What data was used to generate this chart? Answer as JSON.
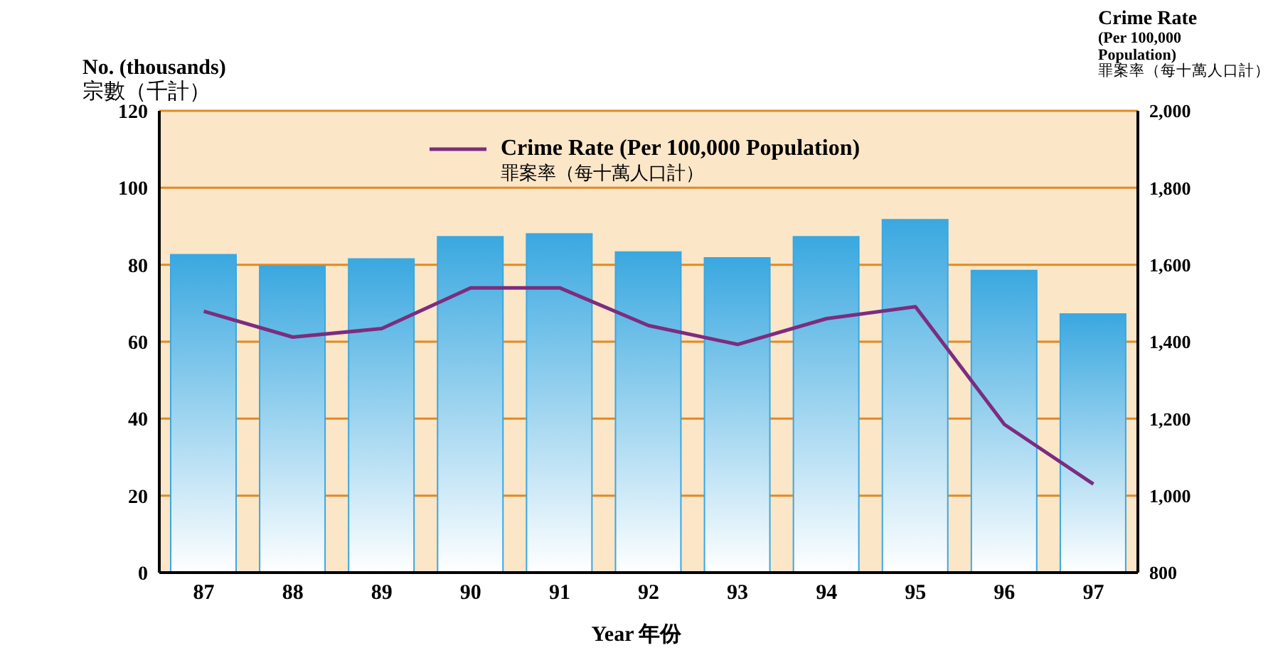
{
  "chart_data": {
    "type": "bar",
    "xlabel": "Year 年份",
    "ylabel": "No. (thousands)\n宗數（千計）",
    "y2label": "Crime Rate\n(Per 100,000\nPopulation)\n罪案率（每十萬人口計）",
    "categories": [
      "87",
      "88",
      "89",
      "90",
      "91",
      "92",
      "93",
      "94",
      "95",
      "96",
      "97"
    ],
    "series": [
      {
        "color": "#3aa8e0",
        "values": [
          82.6,
          79.6,
          81.5,
          87.3,
          88,
          83.3,
          81.8,
          87.3,
          91.7,
          78.5,
          67.2
        ]
      },
      {
        "type": "line",
        "axis": "y2",
        "name": "Crime Rate (Per 100,000 Population)\n罪案率（每十萬人口計）",
        "color": "#7b2d7f",
        "values": [
          1479,
          1412,
          1434,
          1540,
          1540,
          1442,
          1393,
          1460,
          1491,
          1185,
          1030
        ]
      }
    ],
    "ylim": [
      0,
      120
    ],
    "yticks": [
      0,
      20,
      40,
      60,
      80,
      100,
      120
    ],
    "y2lim": [
      800,
      2000
    ],
    "y2ticks": [
      800,
      {
        "value": 1000,
        "label": "1,000"
      },
      {
        "value": 1200,
        "label": "1,200"
      },
      {
        "value": 1400,
        "label": "1,400"
      },
      {
        "value": 1600,
        "label": "1,600"
      },
      {
        "value": 1800,
        "label": "1,800"
      },
      {
        "value": 2000,
        "label": "2,000"
      }
    ],
    "grid": "y",
    "legend": "top",
    "marker": "none"
  }
}
